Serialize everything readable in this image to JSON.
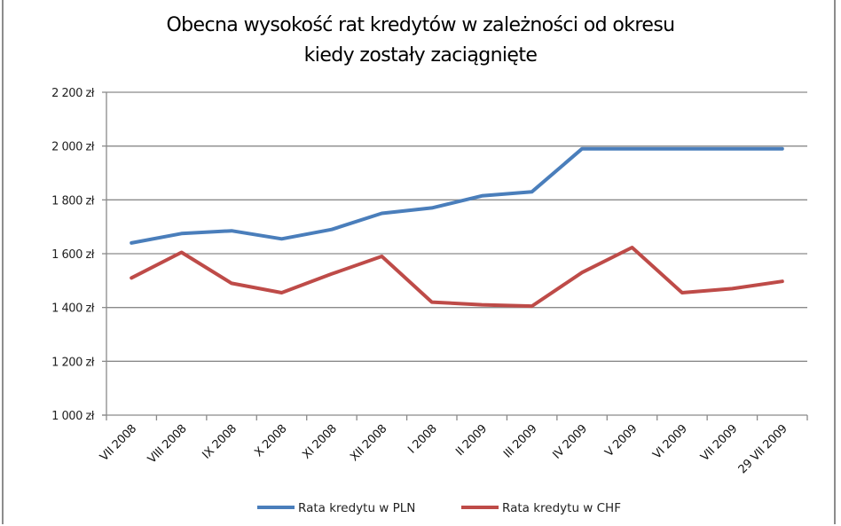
{
  "chart_data": {
    "type": "line",
    "title": "Obecna wysokość rat kredytów w zależności od okresu kiedy zostały zaciągnięte",
    "title_lines": [
      "Obecna wysokość rat kredytów w zależności od okresu",
      "kiedy zostały zaciągnięte"
    ],
    "xlabel": "",
    "ylabel": "",
    "categories": [
      "VII 2008",
      "VIII 2008",
      "IX 2008",
      "X 2008",
      "XI 2008",
      "XII 2008",
      "I 2008",
      "II 2009",
      "III 2009",
      "IV 2009",
      "V 2009",
      "VI 2009",
      "VII 2009",
      "29 VII 2009"
    ],
    "series": [
      {
        "name": "Rata kredytu w PLN",
        "color": "#4a7ebb",
        "values": [
          1640,
          1675,
          1685,
          1655,
          1690,
          1750,
          1770,
          1815,
          1830,
          1990,
          1990,
          1990,
          1990,
          1990
        ]
      },
      {
        "name": "Rata kredytu w CHF",
        "color": "#be4b48",
        "values": [
          1510,
          1605,
          1490,
          1455,
          1525,
          1590,
          1420,
          1410,
          1405,
          1530,
          1623,
          1455,
          1470,
          1497
        ]
      }
    ],
    "ylim": [
      1000,
      2200
    ],
    "yticks": [
      1000,
      1200,
      1400,
      1600,
      1800,
      2000,
      2200
    ],
    "ytick_labels": [
      "1 000 zł",
      "1 200 zł",
      "1 400 zł",
      "1 600 zł",
      "1 800 zł",
      "2 000 zł",
      "2 200 zł"
    ],
    "grid": "horizontal",
    "legend_position": "bottom"
  }
}
